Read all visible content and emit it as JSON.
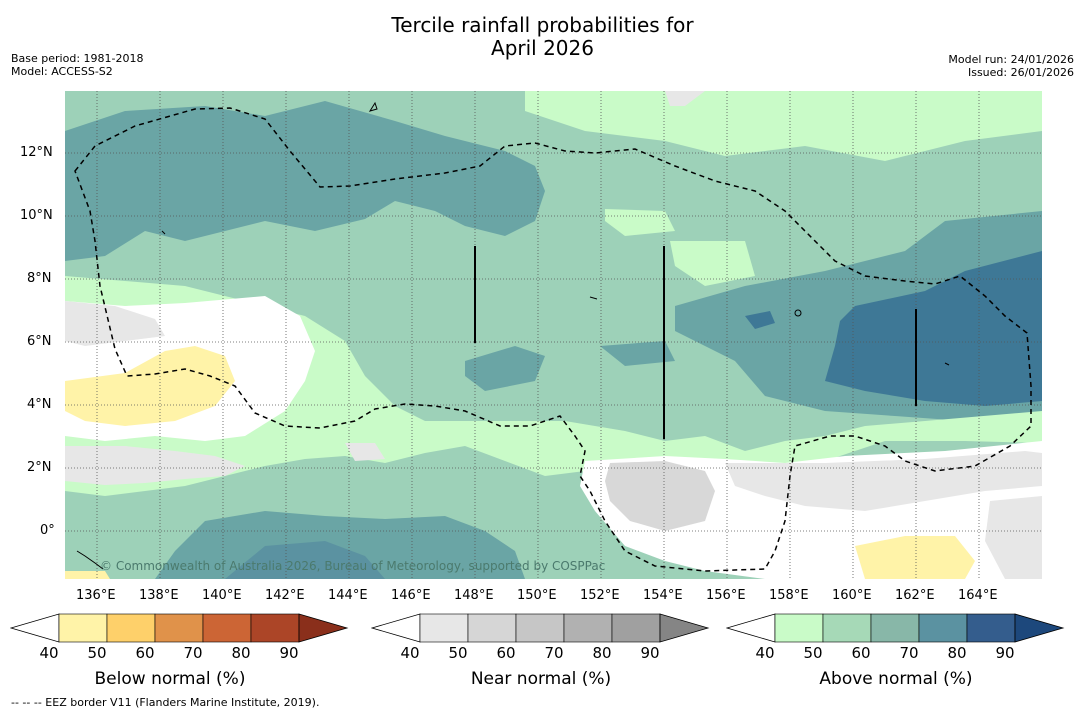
{
  "title": {
    "line1": "Tercile rainfall probabilities for",
    "line2": "April 2026"
  },
  "meta": {
    "base_period": "Base period: 1981-2018",
    "model": "Model: ACCESS-S2",
    "model_run": "Model run: 24/01/2026",
    "issued": "Issued: 26/01/2026"
  },
  "map": {
    "lat_labels": [
      "12°N",
      "10°N",
      "8°N",
      "6°N",
      "4°N",
      "2°N",
      "0°"
    ],
    "lon_labels": [
      "136°E",
      "138°E",
      "140°E",
      "142°E",
      "144°E",
      "146°E",
      "148°E",
      "150°E",
      "152°E",
      "154°E",
      "156°E",
      "158°E",
      "160°E",
      "162°E",
      "164°E"
    ],
    "credit": "© Commonwealth of Australia 2026, Bureau of Meteorology, supported by COSPPac"
  },
  "colorbars": [
    {
      "label": "Below normal (%)",
      "ticks": [
        "40",
        "50",
        "60",
        "70",
        "80",
        "90"
      ],
      "colors": [
        "#fff3a8",
        "#fed06a",
        "#e0924a",
        "#cc6535",
        "#ac4527",
        "#8a2f1b"
      ]
    },
    {
      "label": "Near normal (%)",
      "ticks": [
        "40",
        "50",
        "60",
        "70",
        "80",
        "90"
      ],
      "colors": [
        "#e7e7e7",
        "#d6d6d6",
        "#c6c6c6",
        "#b1b1b1",
        "#a0a0a0",
        "#858585"
      ]
    },
    {
      "label": "Above normal (%)",
      "ticks": [
        "40",
        "50",
        "60",
        "70",
        "80",
        "90"
      ],
      "colors": [
        "#c9fbc8",
        "#a6d9b7",
        "#88b7a8",
        "#5b92a1",
        "#345d8d",
        "#1d487c"
      ]
    }
  ],
  "footnote": "--  --  -- EEZ border V11 (Flanders Marine Institute, 2019)."
}
